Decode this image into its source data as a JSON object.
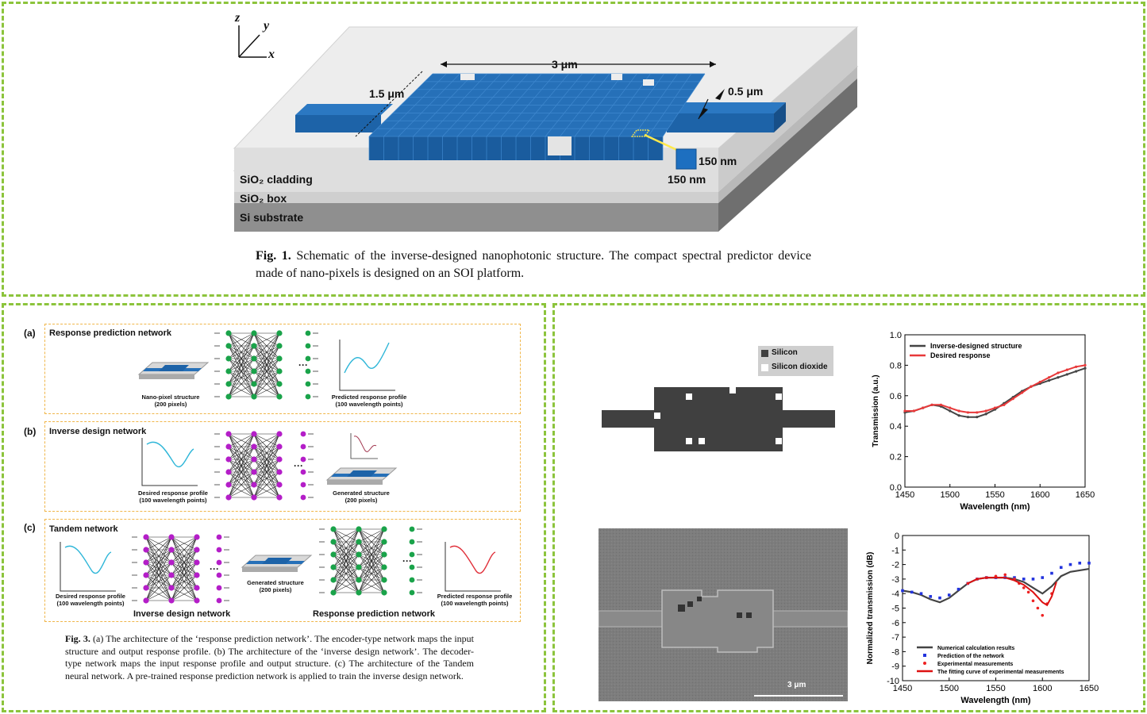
{
  "fig1": {
    "axes": {
      "z": "z",
      "y": "y",
      "x": "x"
    },
    "dim_length": "3 μm",
    "dim_width": "1.5 μm",
    "dim_waveguide": "0.5 μm",
    "pixel_size_a": "150 nm",
    "pixel_size_b": "150 nm",
    "layers": [
      "SiO₂ cladding",
      "SiO₂ box",
      "Si substrate"
    ],
    "caption_label": "Fig. 1.",
    "caption_text": " Schematic of the inverse-designed nanophotonic structure. The compact spectral predictor device made of nano-pixels is designed on an SOI platform."
  },
  "fig3": {
    "a_label": "(a)",
    "a_title": "Response prediction network",
    "a_input": "Nano-pixel structure\n(200 pixels)",
    "a_output": "Predicted response profile\n(100 wavelength points)",
    "b_label": "(b)",
    "b_title": "Inverse design network",
    "b_input": "Desired response profile\n(100 wavelength points)",
    "b_output": "Generated structure\n(200 pixels)",
    "c_label": "(c)",
    "c_title": "Tandem network",
    "c_input": "Desired response profile\n(100 wavelength points)",
    "c_middle": "Generated structure\n(200 pixels)",
    "c_output": "Predicted response profile\n(100 wavelength points)",
    "c_left_net": "Inverse design network",
    "c_right_net": "Response prediction network",
    "caption_label": "Fig. 3.",
    "caption_text": " (a) The architecture of the ‘response prediction network’. The encoder-type network maps the input structure and output response profile. (b) The architecture of the ‘inverse design network’. The decoder-type network maps the input response profile and output structure. (c) The architecture of the Tandem neural network. A pre-trained response prediction network is applied to train the inverse design network."
  },
  "device_legend": [
    "Silicon",
    "Silicon dioxide"
  ],
  "sem_scale": "3 μm",
  "colors": {
    "frame": "#8cc43c",
    "pixel_blue": "#1d63a8",
    "green_node": "#1aa34a",
    "purple_node": "#b41ec8"
  },
  "chart_data": [
    {
      "type": "line",
      "xlabel": "Wavelength (nm)",
      "ylabel": "Transmission (a.u.)",
      "xlim": [
        1450,
        1650
      ],
      "ylim": [
        0,
        1.0
      ],
      "xticks": [
        "1450",
        "1500",
        "1550",
        "1600",
        "1650"
      ],
      "yticks": [
        "0.0",
        "0.2",
        "0.4",
        "0.6",
        "0.8",
        "1.0"
      ],
      "legend": "top-left",
      "x": [
        1450,
        1460,
        1470,
        1480,
        1490,
        1500,
        1510,
        1520,
        1530,
        1540,
        1550,
        1560,
        1570,
        1580,
        1590,
        1600,
        1610,
        1620,
        1630,
        1640,
        1650
      ],
      "series": [
        {
          "name": "Inverse-designed structure",
          "color": "#444444",
          "values": [
            0.49,
            0.5,
            0.52,
            0.54,
            0.53,
            0.5,
            0.47,
            0.46,
            0.46,
            0.48,
            0.51,
            0.55,
            0.59,
            0.63,
            0.66,
            0.68,
            0.7,
            0.72,
            0.74,
            0.76,
            0.78
          ]
        },
        {
          "name": "Desired response",
          "color": "#e8393a",
          "values": [
            0.5,
            0.5,
            0.52,
            0.54,
            0.54,
            0.52,
            0.5,
            0.49,
            0.49,
            0.5,
            0.52,
            0.54,
            0.58,
            0.62,
            0.66,
            0.69,
            0.72,
            0.75,
            0.77,
            0.79,
            0.8
          ]
        }
      ]
    },
    {
      "type": "line",
      "xlabel": "Wavelength (nm)",
      "ylabel": "Normalized transmission (dB)",
      "xlim": [
        1450,
        1650
      ],
      "ylim": [
        -10,
        0
      ],
      "xticks": [
        "1450",
        "1500",
        "1550",
        "1600",
        "1650"
      ],
      "yticks": [
        "0",
        "-1",
        "-2",
        "-3",
        "-4",
        "-5",
        "-6",
        "-7",
        "-8",
        "-9",
        "-10"
      ],
      "legend": "bottom-left",
      "x": [
        1450,
        1460,
        1470,
        1480,
        1490,
        1500,
        1510,
        1520,
        1530,
        1540,
        1550,
        1560,
        1570,
        1580,
        1590,
        1600,
        1610,
        1620,
        1630,
        1640,
        1650
      ],
      "series": [
        {
          "name": "Numerical calculation results",
          "color": "#444444",
          "values": [
            -3.8,
            -3.9,
            -4.1,
            -4.4,
            -4.6,
            -4.3,
            -3.8,
            -3.3,
            -3.0,
            -2.9,
            -2.9,
            -2.9,
            -3.0,
            -3.2,
            -3.6,
            -4.0,
            -3.5,
            -2.8,
            -2.5,
            -2.4,
            -2.3
          ]
        },
        {
          "name": "Prediction of the network",
          "color": "#2233dd",
          "values": [
            -3.8,
            -3.9,
            -4.0,
            -4.2,
            -4.3,
            -4.1,
            -3.7,
            -3.3,
            -3.0,
            -2.9,
            -2.9,
            -2.9,
            -2.9,
            -3.0,
            -3.0,
            -2.9,
            -2.6,
            -2.2,
            -2.0,
            -1.9,
            -1.9
          ]
        },
        {
          "name": "Experimental measurements",
          "color": "#ee2222",
          "x": [
            1520,
            1530,
            1540,
            1550,
            1560,
            1570,
            1575,
            1580,
            1585,
            1590,
            1595,
            1600,
            1605,
            1610
          ],
          "values": [
            -3.3,
            -3.0,
            -2.9,
            -2.8,
            -2.7,
            -3.0,
            -3.3,
            -3.6,
            -3.9,
            -4.5,
            -5.0,
            -5.5,
            -4.7,
            -4.0
          ]
        },
        {
          "name": "The fitting curve of experimental measurements",
          "color": "#dd1111",
          "x": [
            1520,
            1530,
            1540,
            1550,
            1560,
            1570,
            1580,
            1590,
            1600,
            1605,
            1610,
            1615
          ],
          "values": [
            -3.3,
            -3.0,
            -2.9,
            -2.9,
            -2.9,
            -3.1,
            -3.4,
            -3.9,
            -4.6,
            -4.8,
            -4.2,
            -3.2
          ]
        }
      ]
    }
  ]
}
